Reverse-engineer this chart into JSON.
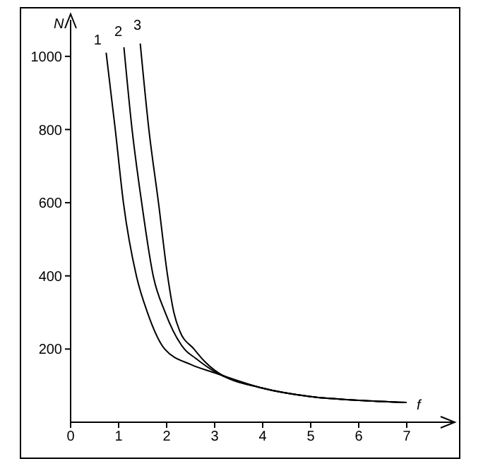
{
  "chart_data": {
    "type": "line",
    "xlabel": "f",
    "ylabel": "N",
    "xlim": [
      0,
      8
    ],
    "xticks": [
      0,
      1,
      2,
      3,
      4,
      5,
      6,
      7
    ],
    "ylim": [
      0,
      1100
    ],
    "yticks": [
      200,
      400,
      600,
      800,
      1000
    ],
    "grid": false,
    "legend": false,
    "marker": "none",
    "line_style": "solid",
    "series": [
      {
        "name": "1",
        "color": "#000000",
        "x": [
          0.74,
          0.93,
          1.1,
          1.37,
          1.6,
          1.96,
          2.5,
          3,
          4,
          5,
          6,
          7
        ],
        "values": [
          1010,
          800,
          600,
          400,
          300,
          200,
          158,
          135,
          93,
          70,
          60,
          54
        ]
      },
      {
        "name": "2",
        "color": "#000000",
        "x": [
          1.11,
          1.28,
          1.48,
          1.72,
          1.97,
          2.37,
          2.6,
          3,
          4,
          5,
          6,
          7
        ],
        "values": [
          1025,
          800,
          600,
          400,
          300,
          200,
          175,
          138,
          93,
          70,
          60,
          54
        ]
      },
      {
        "name": "3",
        "color": "#000000",
        "x": [
          1.45,
          1.63,
          1.83,
          2.02,
          2.15,
          2.27,
          2.57,
          2.8,
          3,
          4,
          5,
          6,
          7
        ],
        "values": [
          1035,
          800,
          600,
          400,
          300,
          250,
          200,
          165,
          142,
          93,
          70,
          60,
          54
        ]
      }
    ]
  }
}
